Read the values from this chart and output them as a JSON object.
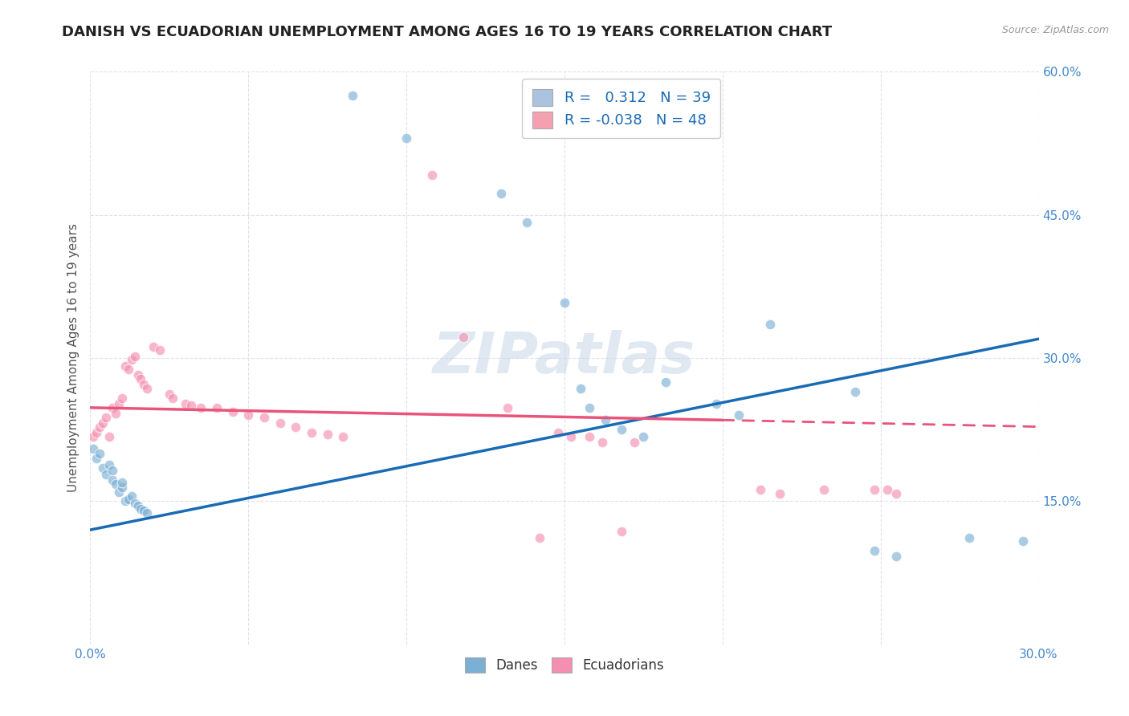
{
  "title": "DANISH VS ECUADORIAN UNEMPLOYMENT AMONG AGES 16 TO 19 YEARS CORRELATION CHART",
  "source": "Source: ZipAtlas.com",
  "ylabel": "Unemployment Among Ages 16 to 19 years",
  "xlim": [
    0.0,
    0.3
  ],
  "ylim": [
    0.0,
    0.6
  ],
  "xticks": [
    0.0,
    0.05,
    0.1,
    0.15,
    0.2,
    0.25,
    0.3
  ],
  "yticks": [
    0.0,
    0.15,
    0.3,
    0.45,
    0.6
  ],
  "legend_entries": [
    {
      "label": "Danes",
      "color": "#aac4e0",
      "R": "0.312",
      "N": "39"
    },
    {
      "label": "Ecuadorians",
      "color": "#f5a0b0",
      "R": "-0.038",
      "N": "48"
    }
  ],
  "blue_scatter": [
    [
      0.001,
      0.205
    ],
    [
      0.002,
      0.195
    ],
    [
      0.003,
      0.2
    ],
    [
      0.004,
      0.185
    ],
    [
      0.005,
      0.178
    ],
    [
      0.006,
      0.188
    ],
    [
      0.007,
      0.172
    ],
    [
      0.007,
      0.182
    ],
    [
      0.008,
      0.168
    ],
    [
      0.009,
      0.16
    ],
    [
      0.01,
      0.165
    ],
    [
      0.01,
      0.17
    ],
    [
      0.011,
      0.15
    ],
    [
      0.012,
      0.152
    ],
    [
      0.013,
      0.155
    ],
    [
      0.014,
      0.148
    ],
    [
      0.015,
      0.145
    ],
    [
      0.016,
      0.142
    ],
    [
      0.017,
      0.14
    ],
    [
      0.018,
      0.138
    ],
    [
      0.083,
      0.575
    ],
    [
      0.1,
      0.53
    ],
    [
      0.13,
      0.472
    ],
    [
      0.138,
      0.442
    ],
    [
      0.15,
      0.358
    ],
    [
      0.155,
      0.268
    ],
    [
      0.158,
      0.248
    ],
    [
      0.163,
      0.235
    ],
    [
      0.168,
      0.225
    ],
    [
      0.175,
      0.218
    ],
    [
      0.182,
      0.275
    ],
    [
      0.198,
      0.252
    ],
    [
      0.205,
      0.24
    ],
    [
      0.215,
      0.335
    ],
    [
      0.242,
      0.265
    ],
    [
      0.248,
      0.098
    ],
    [
      0.255,
      0.092
    ],
    [
      0.278,
      0.112
    ],
    [
      0.295,
      0.108
    ]
  ],
  "pink_scatter": [
    [
      0.001,
      0.218
    ],
    [
      0.002,
      0.222
    ],
    [
      0.003,
      0.228
    ],
    [
      0.004,
      0.232
    ],
    [
      0.005,
      0.238
    ],
    [
      0.006,
      0.218
    ],
    [
      0.007,
      0.248
    ],
    [
      0.008,
      0.242
    ],
    [
      0.009,
      0.252
    ],
    [
      0.01,
      0.258
    ],
    [
      0.011,
      0.292
    ],
    [
      0.012,
      0.288
    ],
    [
      0.013,
      0.298
    ],
    [
      0.014,
      0.302
    ],
    [
      0.015,
      0.282
    ],
    [
      0.016,
      0.278
    ],
    [
      0.017,
      0.272
    ],
    [
      0.018,
      0.268
    ],
    [
      0.02,
      0.312
    ],
    [
      0.022,
      0.308
    ],
    [
      0.025,
      0.262
    ],
    [
      0.026,
      0.258
    ],
    [
      0.03,
      0.252
    ],
    [
      0.032,
      0.25
    ],
    [
      0.035,
      0.248
    ],
    [
      0.04,
      0.248
    ],
    [
      0.045,
      0.244
    ],
    [
      0.05,
      0.24
    ],
    [
      0.055,
      0.238
    ],
    [
      0.06,
      0.232
    ],
    [
      0.065,
      0.228
    ],
    [
      0.07,
      0.222
    ],
    [
      0.075,
      0.22
    ],
    [
      0.08,
      0.218
    ],
    [
      0.108,
      0.492
    ],
    [
      0.118,
      0.322
    ],
    [
      0.132,
      0.248
    ],
    [
      0.142,
      0.112
    ],
    [
      0.148,
      0.222
    ],
    [
      0.152,
      0.218
    ],
    [
      0.158,
      0.218
    ],
    [
      0.162,
      0.212
    ],
    [
      0.168,
      0.118
    ],
    [
      0.172,
      0.212
    ],
    [
      0.212,
      0.162
    ],
    [
      0.218,
      0.158
    ],
    [
      0.232,
      0.162
    ],
    [
      0.252,
      0.162
    ],
    [
      0.248,
      0.162
    ],
    [
      0.255,
      0.158
    ]
  ],
  "blue_line": {
    "x": [
      0.0,
      0.3
    ],
    "y": [
      0.12,
      0.32
    ]
  },
  "pink_line_solid": {
    "x": [
      0.0,
      0.2
    ],
    "y": [
      0.248,
      0.235
    ]
  },
  "pink_line_dash": {
    "x": [
      0.2,
      0.3
    ],
    "y": [
      0.235,
      0.228
    ]
  },
  "background_color": "#ffffff",
  "grid_color": "#e0e0ee",
  "title_fontsize": 13,
  "axis_label_fontsize": 11,
  "tick_fontsize": 11,
  "scatter_size": 80,
  "scatter_alpha": 0.65,
  "blue_color": "#7bafd4",
  "pink_color": "#f48fb1",
  "blue_line_color": "#1a6bb5",
  "pink_line_color": "#e8547a",
  "watermark": "ZIPatlas",
  "watermark_color": "#c8d8e8",
  "watermark_fontsize": 52
}
